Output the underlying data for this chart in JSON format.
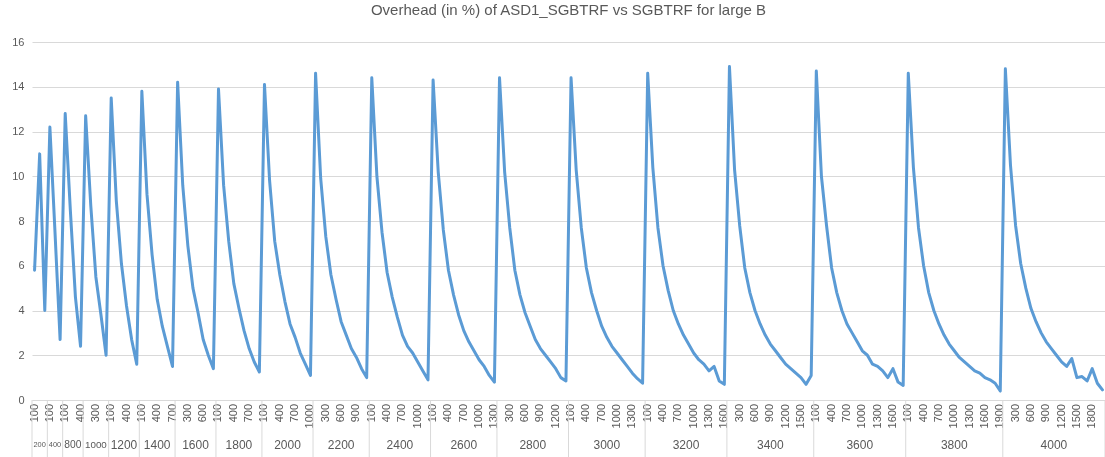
{
  "chart_data": {
    "type": "line",
    "title": "Overhead (in %) of ASD1_SGBTRF vs SGBTRF for large B",
    "categories": [
      "100",
      null,
      null,
      "100",
      null,
      null,
      "100",
      null,
      null,
      "400",
      null,
      null,
      "300",
      null,
      null,
      "100",
      null,
      null,
      "400",
      null,
      null,
      "100",
      null,
      null,
      "400",
      null,
      null,
      "700",
      null,
      null,
      "300",
      null,
      null,
      "600",
      null,
      null,
      "100",
      null,
      null,
      "400",
      null,
      null,
      "700",
      null,
      null,
      "100",
      null,
      null,
      "400",
      null,
      null,
      "700",
      null,
      null,
      "1000",
      null,
      null,
      "300",
      null,
      null,
      "600",
      null,
      null,
      "900",
      null,
      null,
      "100",
      null,
      null,
      "400",
      null,
      null,
      "700",
      null,
      null,
      "1000",
      null,
      null,
      "100",
      null,
      null,
      "400",
      null,
      null,
      "700",
      null,
      null,
      "1000",
      null,
      null,
      "1300",
      null,
      null,
      "300",
      null,
      null,
      "600",
      null,
      null,
      "900",
      null,
      null,
      "1200",
      null,
      null,
      "100",
      null,
      null,
      "400",
      null,
      null,
      "700",
      null,
      null,
      "1000",
      null,
      null,
      "1300",
      null,
      null,
      "100",
      null,
      null,
      "400",
      null,
      null,
      "700",
      null,
      null,
      "1000",
      null,
      null,
      "1300",
      null,
      null,
      "1600",
      null,
      null,
      "300",
      null,
      null,
      "600",
      null,
      null,
      "900",
      null,
      null,
      "1200",
      null,
      null,
      "1500",
      null,
      null,
      "100",
      null,
      null,
      "400",
      null,
      null,
      "700",
      null,
      null,
      "1000",
      null,
      null,
      "1300",
      null,
      null,
      "1600",
      null,
      null,
      "100",
      null,
      null,
      "400",
      null,
      null,
      "700",
      null,
      null,
      "1000",
      null,
      null,
      "1300",
      null,
      null,
      "1600",
      null,
      null,
      "1900",
      null,
      null,
      "300",
      null,
      null,
      "600",
      null,
      null,
      "900",
      null,
      null,
      "1200",
      null,
      null,
      "1500",
      null,
      null,
      "1800",
      null,
      null
    ],
    "series": [
      {
        "color": "#5b9bd5",
        "values": [
          5.8,
          11.0,
          4.0,
          12.2,
          7.5,
          2.7,
          12.8,
          8.5,
          4.6,
          2.4,
          12.7,
          8.7,
          5.5,
          3.8,
          2.0,
          13.5,
          8.9,
          6.1,
          4.2,
          2.7,
          1.6,
          13.8,
          9.2,
          6.5,
          4.5,
          3.3,
          2.4,
          1.5,
          14.2,
          9.6,
          6.9,
          5.0,
          3.9,
          2.7,
          2.0,
          1.4,
          13.9,
          9.6,
          7.1,
          5.2,
          4.1,
          3.1,
          2.3,
          1.7,
          1.25,
          14.1,
          9.8,
          7.1,
          5.6,
          4.4,
          3.4,
          2.8,
          2.1,
          1.6,
          1.1,
          14.6,
          9.9,
          7.3,
          5.6,
          4.5,
          3.5,
          2.9,
          2.3,
          1.9,
          1.4,
          1.0,
          14.4,
          10.0,
          7.5,
          5.7,
          4.6,
          3.7,
          2.9,
          2.4,
          2.1,
          1.7,
          1.3,
          0.9,
          14.3,
          10.2,
          7.6,
          5.8,
          4.7,
          3.8,
          3.1,
          2.6,
          2.2,
          1.8,
          1.5,
          1.1,
          0.8,
          14.4,
          10.2,
          7.7,
          5.8,
          4.7,
          3.9,
          3.3,
          2.7,
          2.3,
          2.0,
          1.7,
          1.4,
          1.0,
          0.85,
          14.4,
          10.3,
          7.7,
          5.9,
          4.8,
          4.0,
          3.3,
          2.8,
          2.4,
          2.1,
          1.8,
          1.5,
          1.2,
          0.95,
          0.75,
          14.6,
          10.4,
          7.7,
          6.0,
          4.9,
          4.0,
          3.4,
          2.9,
          2.5,
          2.1,
          1.8,
          1.6,
          1.3,
          1.5,
          0.85,
          0.7,
          14.9,
          10.3,
          7.8,
          5.9,
          4.8,
          4.0,
          3.4,
          2.9,
          2.5,
          2.2,
          1.9,
          1.6,
          1.4,
          1.2,
          1.0,
          0.7,
          1.1,
          14.7,
          10.0,
          7.8,
          5.9,
          4.8,
          4.0,
          3.4,
          3.0,
          2.6,
          2.2,
          2.0,
          1.6,
          1.5,
          1.3,
          1.0,
          1.4,
          0.8,
          0.65,
          14.6,
          10.4,
          7.7,
          6.0,
          4.8,
          4.0,
          3.4,
          2.9,
          2.5,
          2.2,
          1.9,
          1.7,
          1.5,
          1.3,
          1.2,
          1.0,
          0.9,
          0.75,
          0.4,
          14.8,
          10.5,
          7.8,
          6.1,
          5.0,
          4.1,
          3.5,
          3.0,
          2.6,
          2.3,
          2.0,
          1.7,
          1.5,
          1.85,
          1.0,
          1.05,
          0.85,
          1.4,
          0.75,
          0.45
        ]
      }
    ],
    "ylim": [
      0,
      16
    ],
    "yticks": [
      0,
      2,
      4,
      6,
      8,
      10,
      12,
      14,
      16
    ],
    "grid": "y",
    "annotations": [
      "200",
      "400",
      "800",
      "1000",
      "1200",
      "1400",
      "1600",
      "1800",
      "2000",
      "2200",
      "2400",
      "2600",
      "2800",
      "3000",
      "3200",
      "3400",
      "3600",
      "3800",
      "4000"
    ]
  }
}
